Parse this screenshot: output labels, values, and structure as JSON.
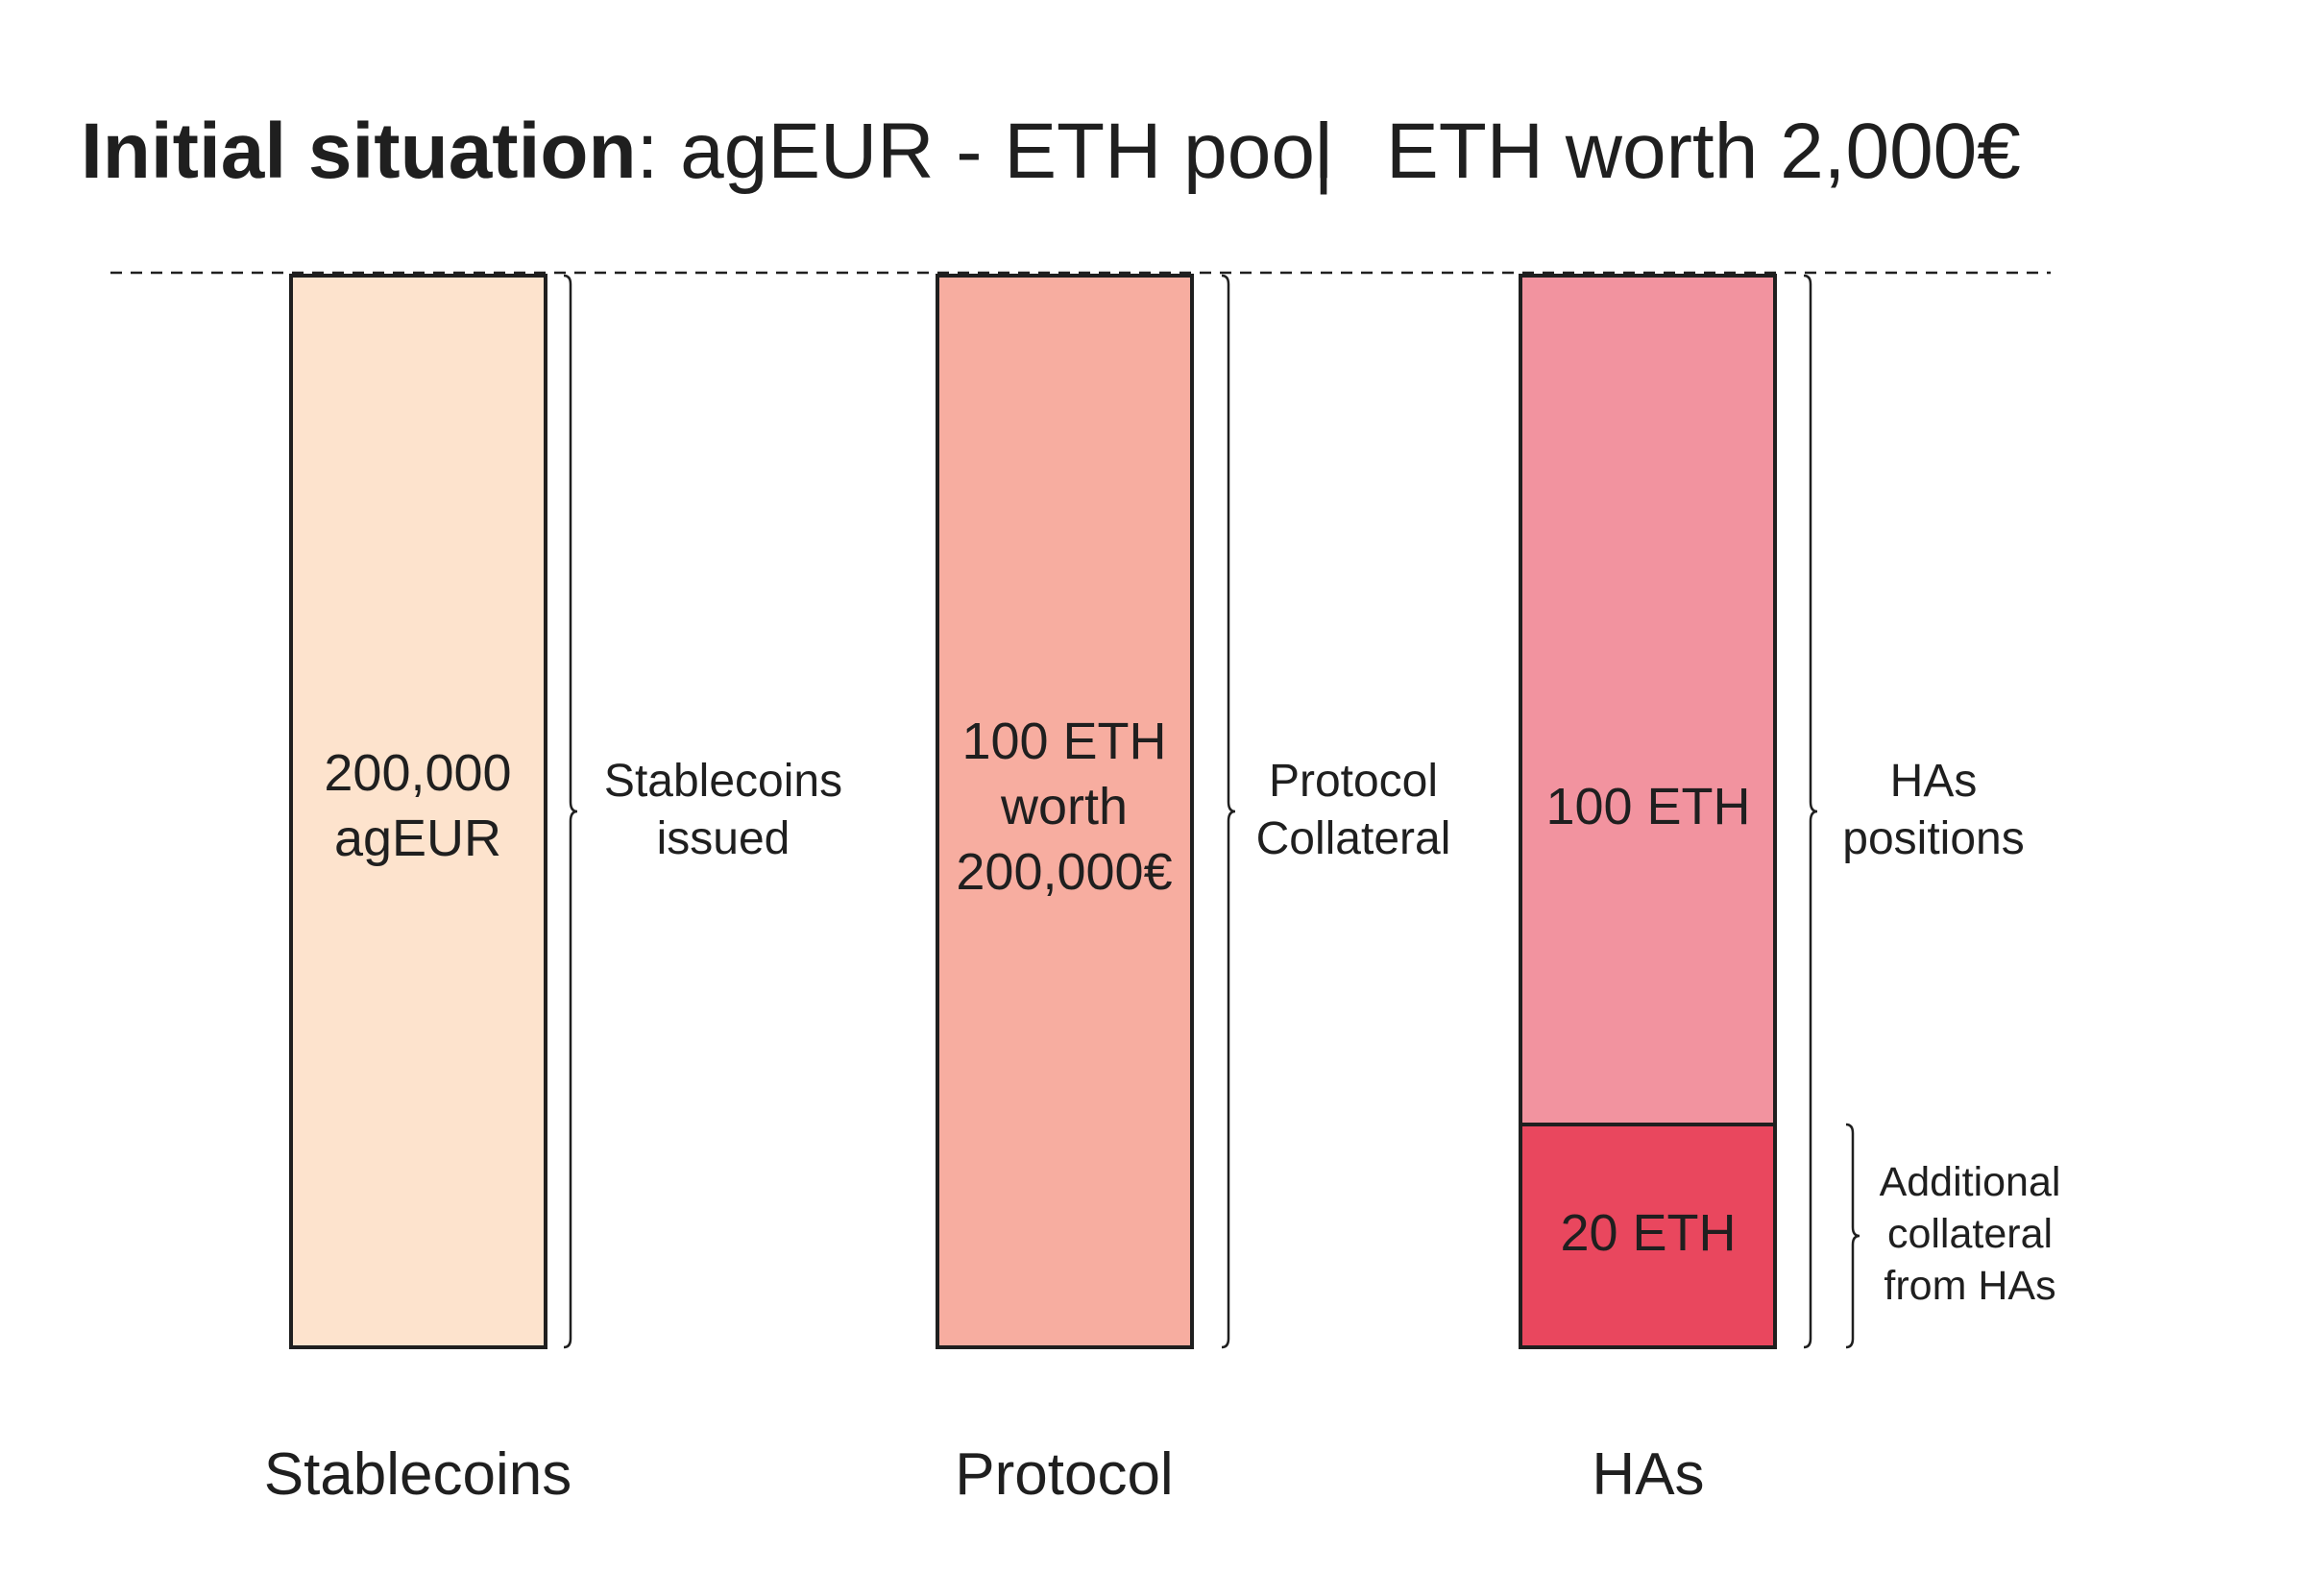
{
  "title": {
    "bold": "Initial situation",
    "rest": ": agEUR - ETH pool",
    "separator": "|",
    "right": "ETH worth 2,000€"
  },
  "colors": {
    "stablecoins_fill": "#FDE3CD",
    "protocol_fill": "#F7ADA0",
    "has_positions_fill": "#F2939F",
    "has_additional_fill": "#E9475E",
    "outline": "#1f1f1f"
  },
  "columns": {
    "stablecoins": {
      "bar_line1": "200,000",
      "bar_line2": "agEUR",
      "brace_line1": "Stablecoins",
      "brace_line2": "issued",
      "label": "Stablecoins"
    },
    "protocol": {
      "bar_line1": "100 ETH",
      "bar_line2": "worth",
      "bar_line3": "200,000€",
      "brace_line1": "Protocol",
      "brace_line2": "Collateral",
      "label": "Protocol"
    },
    "has": {
      "top_segment": "100 ETH",
      "bottom_segment": "20 ETH",
      "brace_line1": "HAs",
      "brace_line2": "positions",
      "additional_line1": "Additional",
      "additional_line2": "collateral",
      "additional_line3": "from HAs",
      "label": "HAs"
    }
  }
}
